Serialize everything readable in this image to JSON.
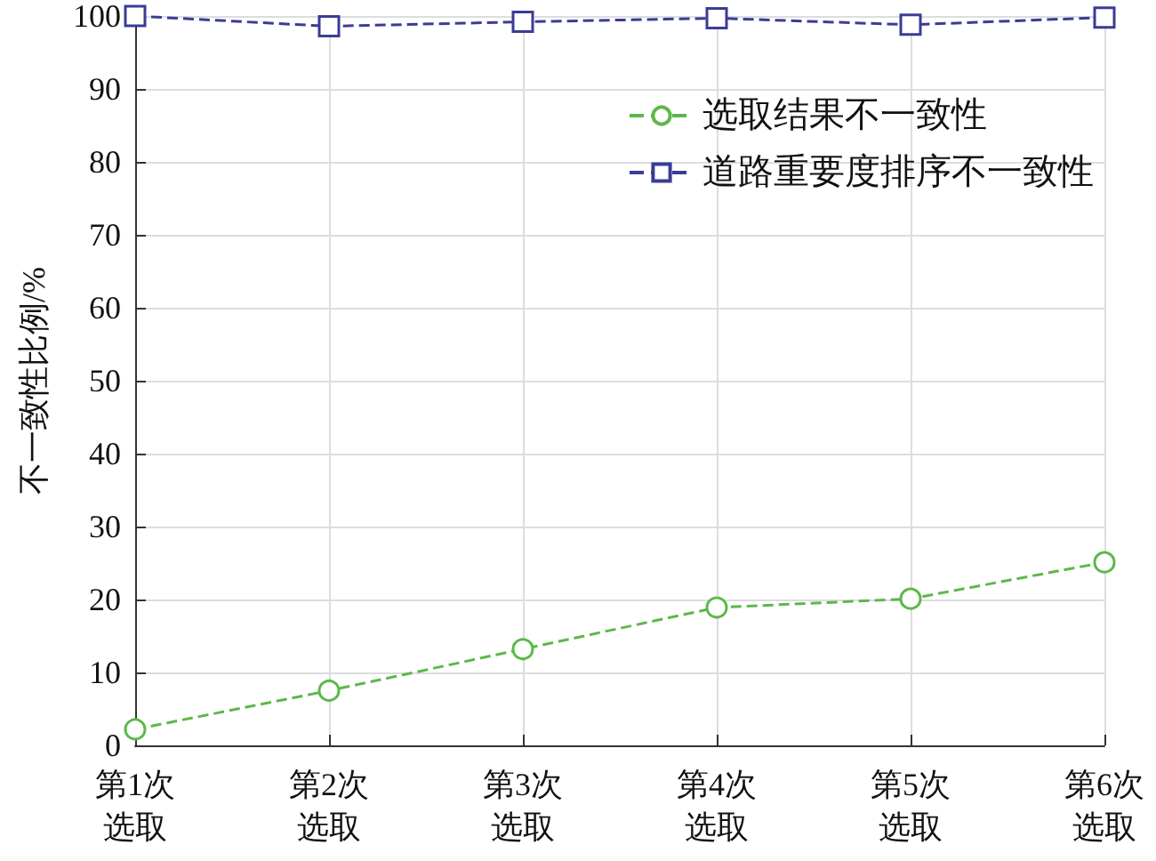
{
  "chart_data": {
    "type": "line",
    "ylabel": "不一致性比例/%",
    "categories": [
      "第1次选取",
      "第2次选取",
      "第3次选取",
      "第4次选取",
      "第5次选取",
      "第6次选取"
    ],
    "series": [
      {
        "name": "选取结果不一致性",
        "color": "#5cb84a",
        "marker": "circle",
        "values": [
          2.2,
          7.5,
          13.2,
          18.9,
          20.1,
          25.1
        ]
      },
      {
        "name": "道路重要度排序不一致性",
        "color": "#3a3c96",
        "marker": "square",
        "values": [
          100,
          98.6,
          99.2,
          99.7,
          98.8,
          99.8
        ]
      }
    ],
    "ylim": [
      0,
      100
    ],
    "yticks": [
      0,
      10,
      20,
      30,
      40,
      50,
      60,
      70,
      80,
      90,
      100
    ],
    "grid": true,
    "legend": "top right",
    "line_style": "dashed"
  }
}
